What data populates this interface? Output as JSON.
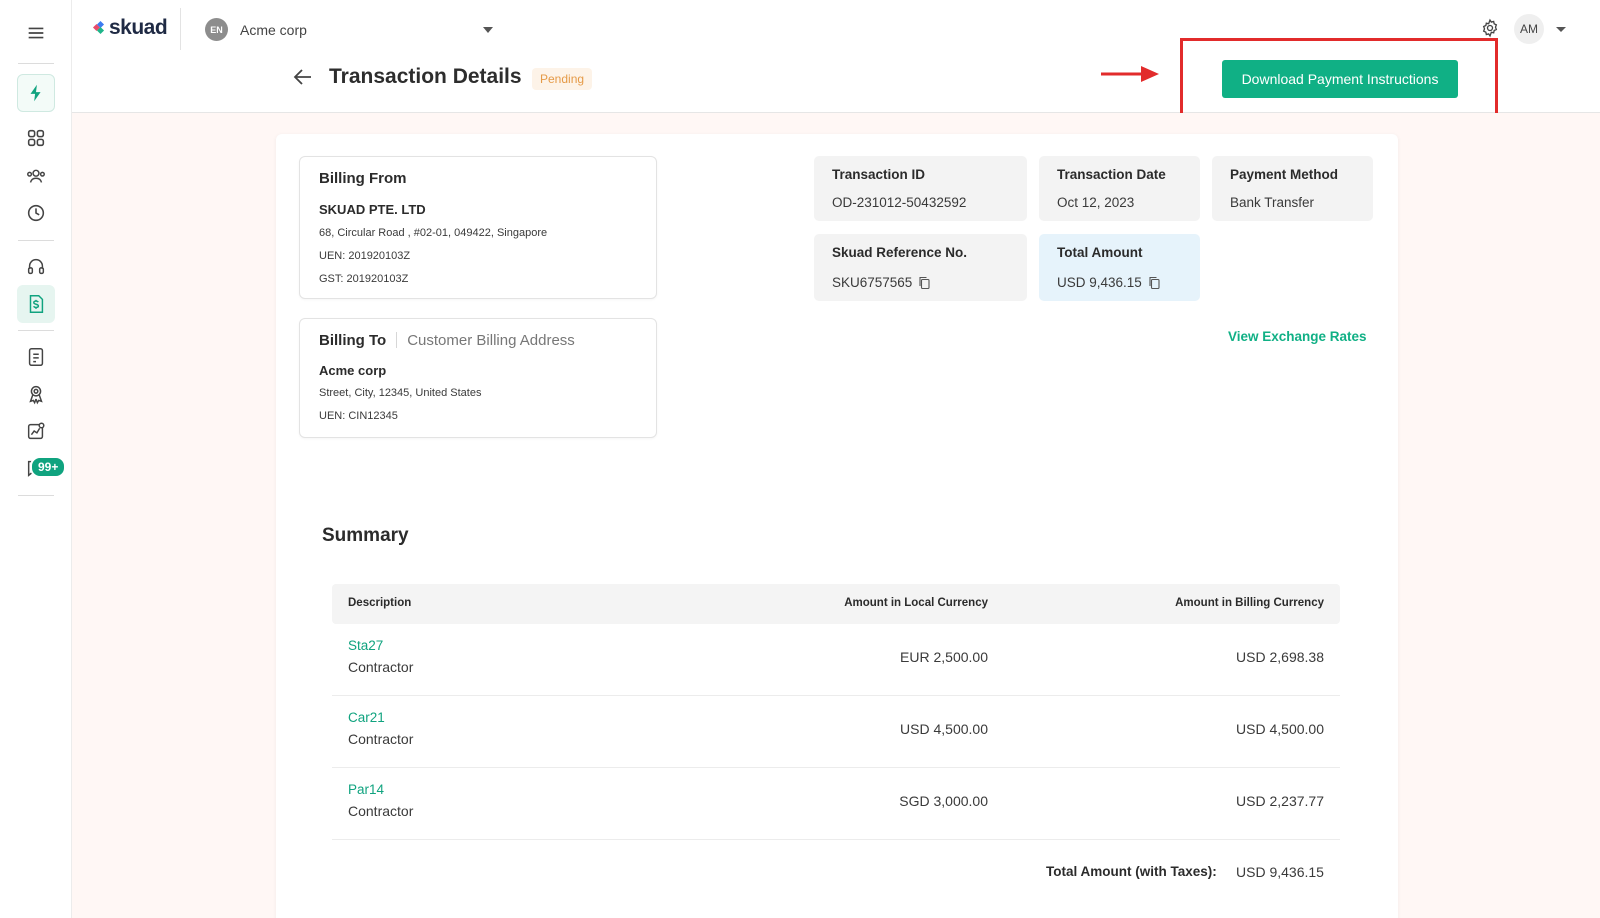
{
  "app": {
    "logo_text": "skuad",
    "org_initials": "EN",
    "org_name": "Acme corp",
    "user_initials": "AM"
  },
  "sidebar": {
    "icons": [
      "menu-icon",
      "lightning-icon",
      "grid-icon",
      "people-icon",
      "clock-icon",
      "headset-icon",
      "dollar-document-icon",
      "report-icon",
      "award-icon",
      "analytics-icon",
      "chat-icon"
    ],
    "chat_badge": "99+"
  },
  "page": {
    "title": "Transaction Details",
    "status": "Pending",
    "download_button": "Download Payment Instructions"
  },
  "billing_from": {
    "title": "Billing From",
    "name": "SKUAD PTE. LTD",
    "address": "68, Circular Road , #02-01, 049422, Singapore",
    "uen": "UEN: 201920103Z",
    "gst": "GST: 201920103Z"
  },
  "billing_to": {
    "title": "Billing To",
    "subtitle": "Customer Billing Address",
    "name": "Acme corp",
    "address": "Street, City, 12345, United States",
    "uen": "UEN: CIN12345"
  },
  "info": {
    "transaction_id_label": "Transaction ID",
    "transaction_id": "OD-231012-50432592",
    "transaction_date_label": "Transaction Date",
    "transaction_date": "Oct 12, 2023",
    "payment_method_label": "Payment Method",
    "payment_method": "Bank Transfer",
    "reference_label": "Skuad Reference No.",
    "reference": "SKU6757565",
    "total_label": "Total Amount",
    "total": "USD 9,436.15"
  },
  "exchange_link": "View Exchange Rates",
  "summary": {
    "title": "Summary",
    "headers": {
      "description": "Description",
      "local": "Amount in Local Currency",
      "billing": "Amount in Billing Currency"
    },
    "rows": [
      {
        "name": "Sta27",
        "type": "Contractor",
        "local": "EUR 2,500.00",
        "billing": "USD 2,698.38"
      },
      {
        "name": "Car21",
        "type": "Contractor",
        "local": "USD 4,500.00",
        "billing": "USD 4,500.00"
      },
      {
        "name": "Par14",
        "type": "Contractor",
        "local": "SGD 3,000.00",
        "billing": "USD 2,237.77"
      }
    ],
    "total_label": "Total Amount (with Taxes):",
    "total_value": "USD 9,436.15"
  },
  "colors": {
    "accent": "#10b085",
    "pending": "#e59a47",
    "highlight_border": "#e22b2b"
  }
}
